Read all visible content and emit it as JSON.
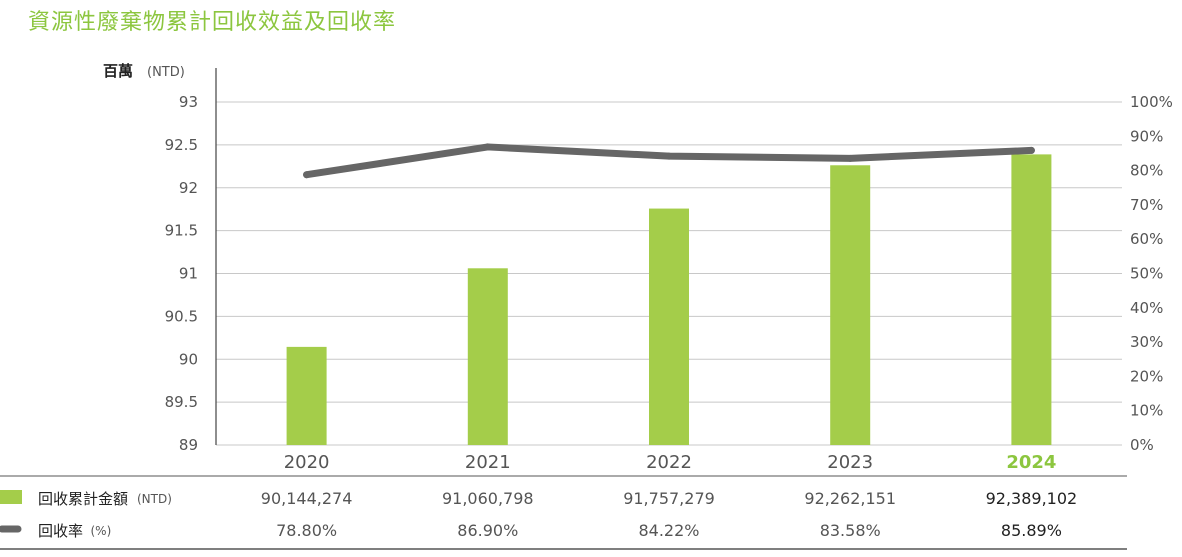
{
  "title": "資源性廢棄物累計回收效益及回收率",
  "chart_data": {
    "type": "bar",
    "title": "資源性廢棄物累計回收效益及回收率",
    "categories": [
      "2020",
      "2021",
      "2022",
      "2023",
      "2024"
    ],
    "highlight_category": "2024",
    "y_unit_label": "百萬",
    "y_unit_sub": "(NTD)",
    "ylim": [
      89,
      93
    ],
    "yticks": [
      "93",
      "92.5",
      "92",
      "91.5",
      "91",
      "90.5",
      "90",
      "89.5",
      "89"
    ],
    "y2lim": [
      0,
      100
    ],
    "y2ticks": [
      "100%",
      "90%",
      "80%",
      "70%",
      "60%",
      "50%",
      "40%",
      "30%",
      "20%",
      "10%",
      "0%"
    ],
    "grid": true,
    "series": [
      {
        "name": "回收累計金額",
        "unit": "(NTD)",
        "type": "bar",
        "axis": "left",
        "color": "#a4cd4a",
        "values": [
          90.144274,
          91.060798,
          91.757279,
          92.262151,
          92.389102
        ],
        "labels": [
          "90,144,274",
          "91,060,798",
          "91,757,279",
          "92,262,151",
          "92,389,102"
        ]
      },
      {
        "name": "回收率",
        "unit": "(%)",
        "type": "line",
        "axis": "right",
        "color": "#666666",
        "values": [
          78.8,
          86.9,
          84.22,
          83.58,
          85.89
        ],
        "labels": [
          "78.80%",
          "86.90%",
          "84.22%",
          "83.58%",
          "85.89%"
        ]
      }
    ]
  }
}
